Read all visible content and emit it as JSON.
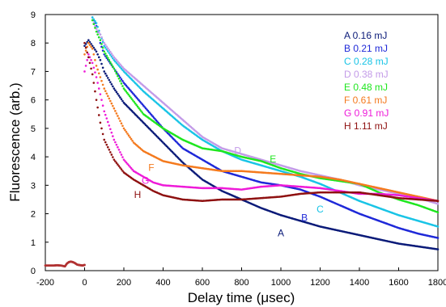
{
  "chart_data": {
    "type": "scatter",
    "title": "",
    "xlabel": "Delay time (μsec)",
    "ylabel": "Fluorescence (arb.)",
    "xlim": [
      -200,
      1800
    ],
    "ylim": [
      0,
      9
    ],
    "x_ticks": [
      -200,
      0,
      200,
      400,
      600,
      800,
      1000,
      1200,
      1400,
      1600,
      1800
    ],
    "y_ticks": [
      0,
      1,
      2,
      3,
      4,
      5,
      6,
      7,
      8,
      9
    ],
    "grid": false,
    "legend_position": "top-right",
    "baseline": {
      "x": [
        -200,
        -180,
        -160,
        -140,
        -120,
        -100,
        -90,
        -80,
        -70,
        -60,
        -50,
        -40,
        -30,
        -20,
        -10,
        0
      ],
      "y": [
        0.18,
        0.18,
        0.18,
        0.19,
        0.18,
        0.15,
        0.25,
        0.3,
        0.32,
        0.3,
        0.27,
        0.22,
        0.2,
        0.19,
        0.18,
        0.2
      ]
    },
    "series": [
      {
        "name": "A 0.16 mJ",
        "label": "A",
        "color": "#0a1a78",
        "x": [
          0,
          20,
          40,
          60,
          80,
          100,
          150,
          200,
          300,
          400,
          500,
          600,
          700,
          800,
          900,
          1000,
          1100,
          1200,
          1300,
          1400,
          1500,
          1600,
          1700,
          1800
        ],
        "y": [
          7.9,
          8.1,
          7.9,
          7.7,
          7.4,
          7.0,
          6.4,
          5.9,
          5.2,
          4.5,
          3.8,
          3.2,
          2.8,
          2.5,
          2.2,
          1.95,
          1.75,
          1.55,
          1.4,
          1.25,
          1.1,
          0.95,
          0.85,
          0.75
        ],
        "label_x": 1000,
        "label_y": 1.2
      },
      {
        "name": "B 0.21 mJ",
        "label": "B",
        "color": "#1e28d8",
        "x": [
          40,
          60,
          80,
          100,
          150,
          200,
          300,
          400,
          500,
          600,
          700,
          800,
          900,
          1000,
          1100,
          1200,
          1300,
          1400,
          1500,
          1600,
          1700,
          1800
        ],
        "y": [
          8.9,
          8.6,
          8.0,
          7.6,
          7.1,
          6.6,
          5.8,
          5.0,
          4.3,
          3.9,
          3.5,
          3.3,
          3.1,
          3.0,
          2.85,
          2.6,
          2.3,
          2.0,
          1.75,
          1.5,
          1.3,
          1.15
        ],
        "label_x": 1120,
        "label_y": 1.75
      },
      {
        "name": "C 0.28 mJ",
        "label": "C",
        "color": "#19c4e6",
        "x": [
          40,
          60,
          80,
          100,
          150,
          200,
          300,
          400,
          500,
          600,
          700,
          800,
          900,
          1000,
          1100,
          1200,
          1300,
          1400,
          1500,
          1600,
          1700,
          1800
        ],
        "y": [
          8.9,
          8.7,
          8.3,
          7.9,
          7.4,
          7.0,
          6.3,
          5.7,
          5.1,
          4.6,
          4.2,
          3.9,
          3.7,
          3.5,
          3.3,
          3.05,
          2.75,
          2.45,
          2.2,
          1.95,
          1.75,
          1.55
        ],
        "label_x": 1200,
        "label_y": 2.05
      },
      {
        "name": "D 0.38 mJ",
        "label": "D",
        "color": "#c39be8",
        "x": [
          40,
          60,
          80,
          100,
          150,
          200,
          300,
          400,
          500,
          600,
          700,
          800,
          900,
          1000,
          1100,
          1200,
          1300,
          1400,
          1500,
          1600,
          1700,
          1800
        ],
        "y": [
          8.8,
          8.5,
          8.3,
          8.0,
          7.5,
          7.1,
          6.5,
          5.9,
          5.3,
          4.7,
          4.3,
          4.1,
          3.9,
          3.7,
          3.5,
          3.35,
          3.2,
          3.0,
          2.85,
          2.7,
          2.55,
          2.35
        ],
        "label_x": 780,
        "label_y": 4.1
      },
      {
        "name": "E 0.48 mJ",
        "label": "E",
        "color": "#1ee61e",
        "x": [
          40,
          60,
          80,
          100,
          150,
          200,
          300,
          400,
          500,
          600,
          700,
          800,
          900,
          1000,
          1100,
          1200,
          1300,
          1400,
          1500,
          1600,
          1700,
          1800
        ],
        "y": [
          8.8,
          8.4,
          8.1,
          7.7,
          7.1,
          6.4,
          5.5,
          5.0,
          4.6,
          4.3,
          4.2,
          4.0,
          3.85,
          3.6,
          3.4,
          3.25,
          3.15,
          3.05,
          2.75,
          2.5,
          2.3,
          2.05
        ],
        "label_x": 960,
        "label_y": 3.8
      },
      {
        "name": "F 0.61 mJ",
        "label": "F",
        "color": "#f47a1e",
        "x": [
          0,
          20,
          40,
          60,
          80,
          100,
          150,
          200,
          250,
          300,
          400,
          500,
          600,
          700,
          800,
          900,
          1000,
          1100,
          1200,
          1300,
          1400,
          1500,
          1600,
          1700,
          1800
        ],
        "y": [
          7.6,
          8.0,
          7.8,
          7.2,
          6.8,
          6.4,
          5.7,
          5.0,
          4.5,
          4.2,
          3.85,
          3.7,
          3.6,
          3.5,
          3.5,
          3.45,
          3.4,
          3.35,
          3.3,
          3.2,
          3.05,
          2.9,
          2.75,
          2.6,
          2.45
        ],
        "label_x": 340,
        "label_y": 3.5
      },
      {
        "name": "G 0.91 mJ",
        "label": "G",
        "color": "#ee1ad8",
        "x": [
          0,
          20,
          40,
          60,
          80,
          100,
          150,
          200,
          250,
          300,
          350,
          400,
          500,
          600,
          700,
          800,
          900,
          1000,
          1100,
          1200,
          1300,
          1400,
          1500,
          1600,
          1700,
          1800
        ],
        "y": [
          7.0,
          7.6,
          7.3,
          6.8,
          6.2,
          5.6,
          4.6,
          3.9,
          3.5,
          3.3,
          3.1,
          3.0,
          2.95,
          2.9,
          2.9,
          2.85,
          2.95,
          3.0,
          2.95,
          2.9,
          2.8,
          2.7,
          2.7,
          2.65,
          2.55,
          2.45
        ],
        "label_x": 310,
        "label_y": 3.05
      },
      {
        "name": "H 1.11 mJ",
        "label": "H",
        "color": "#8e1010",
        "x": [
          0,
          20,
          40,
          60,
          80,
          100,
          150,
          200,
          250,
          300,
          350,
          400,
          500,
          600,
          700,
          800,
          900,
          1000,
          1100,
          1200,
          1300,
          1400,
          1500,
          1600,
          1700,
          1800
        ],
        "y": [
          8.0,
          7.5,
          6.9,
          6.0,
          5.2,
          4.6,
          3.9,
          3.45,
          3.2,
          3.0,
          2.8,
          2.65,
          2.5,
          2.45,
          2.5,
          2.5,
          2.55,
          2.6,
          2.7,
          2.75,
          2.75,
          2.75,
          2.65,
          2.55,
          2.5,
          2.45
        ],
        "label_x": 270,
        "label_y": 2.55
      }
    ]
  }
}
